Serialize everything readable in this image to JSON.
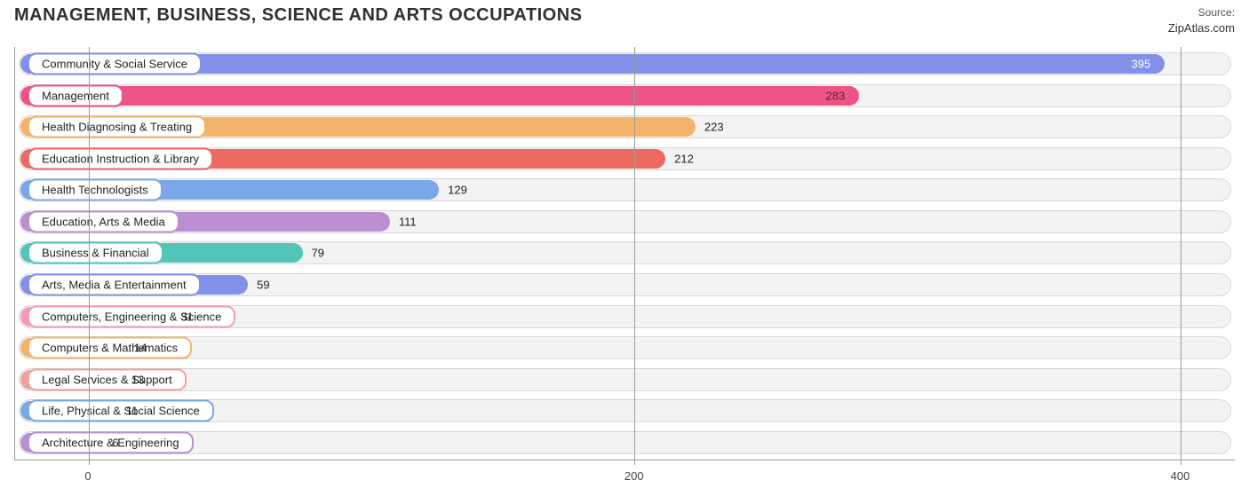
{
  "title": "MANAGEMENT, BUSINESS, SCIENCE AND ARTS OCCUPATIONS",
  "source": {
    "label": "Source:",
    "domain": "ZipAtlas.com"
  },
  "chart": {
    "type": "bar-horizontal",
    "background_color": "#ffffff",
    "track_color": "#f3f3f3",
    "track_border": "#d8d8d8",
    "grid_color": "#9a9a9a",
    "axis_color": "#9a9a9a",
    "label_fontsize": 13,
    "title_fontsize": 20,
    "xmin": -27,
    "xmax": 420,
    "xticks": [
      0,
      200,
      400
    ],
    "bars": [
      {
        "label": "Community & Social Service",
        "value": 395,
        "color": "#8191e8",
        "value_inside": true,
        "value_color": "#ffffff"
      },
      {
        "label": "Management",
        "value": 283,
        "color": "#ed5485",
        "value_inside": true,
        "value_color": "#5a2a2a"
      },
      {
        "label": "Health Diagnosing & Treating",
        "value": 223,
        "color": "#f4b26a",
        "value_inside": false,
        "value_color": "#222222"
      },
      {
        "label": "Education Instruction & Library",
        "value": 212,
        "color": "#ec6a5f",
        "value_inside": false,
        "value_color": "#222222"
      },
      {
        "label": "Health Technologists",
        "value": 129,
        "color": "#79a7e8",
        "value_inside": false,
        "value_color": "#222222"
      },
      {
        "label": "Education, Arts & Media",
        "value": 111,
        "color": "#b98fd1",
        "value_inside": false,
        "value_color": "#222222"
      },
      {
        "label": "Business & Financial",
        "value": 79,
        "color": "#52c4b8",
        "value_inside": false,
        "value_color": "#222222"
      },
      {
        "label": "Arts, Media & Entertainment",
        "value": 59,
        "color": "#8191e8",
        "value_inside": false,
        "value_color": "#222222"
      },
      {
        "label": "Computers, Engineering & Science",
        "value": 31,
        "color": "#f49ac1",
        "value_inside": false,
        "value_color": "#222222"
      },
      {
        "label": "Computers & Mathematics",
        "value": 14,
        "color": "#f4b26a",
        "value_inside": false,
        "value_color": "#222222"
      },
      {
        "label": "Legal Services & Support",
        "value": 13,
        "color": "#f1a19a",
        "value_inside": false,
        "value_color": "#222222"
      },
      {
        "label": "Life, Physical & Social Science",
        "value": 11,
        "color": "#79a7e8",
        "value_inside": false,
        "value_color": "#222222"
      },
      {
        "label": "Architecture & Engineering",
        "value": 6,
        "color": "#b98fd1",
        "value_inside": false,
        "value_color": "#222222"
      }
    ]
  }
}
